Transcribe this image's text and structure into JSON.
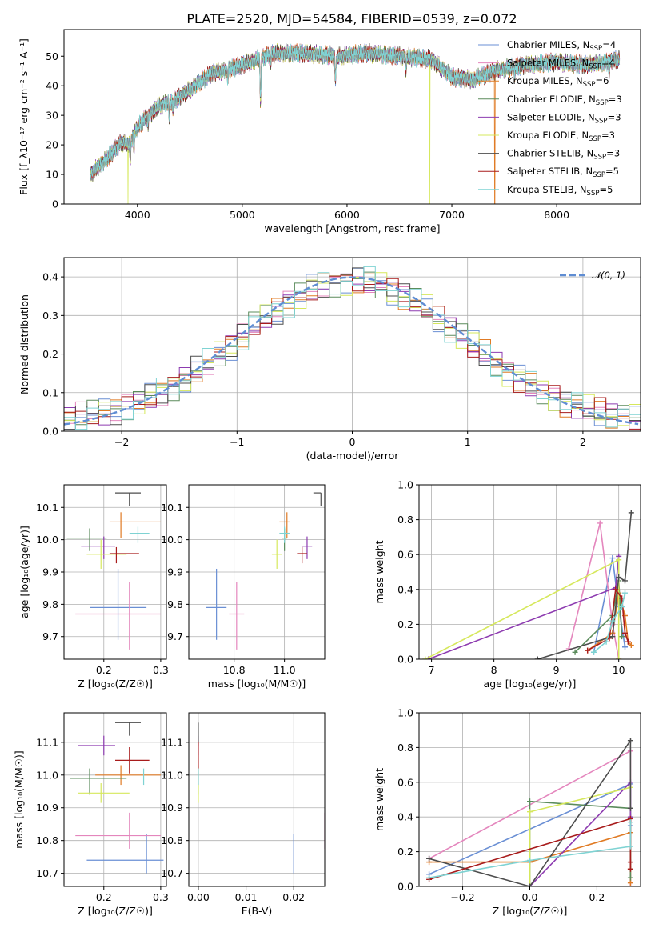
{
  "figure": {
    "title": "PLATE=2520, MJD=54584, FIBERID=0539, z=0.072"
  },
  "series": [
    {
      "name": "Chabrier MILES",
      "nssp": "4",
      "color": "#6a8fd4"
    },
    {
      "name": "Salpeter MILES",
      "nssp": "4",
      "color": "#e486bd"
    },
    {
      "name": "Kroupa MILES",
      "nssp": "6",
      "color": "#e07b25"
    },
    {
      "name": "Chabrier ELODIE",
      "nssp": "3",
      "color": "#5b8c5c"
    },
    {
      "name": "Salpeter ELODIE",
      "nssp": "3",
      "color": "#8d3bb0"
    },
    {
      "name": "Kroupa ELODIE",
      "nssp": "3",
      "color": "#d6e85c"
    },
    {
      "name": "Chabrier STELIB",
      "nssp": "3",
      "color": "#4d4d4d"
    },
    {
      "name": "Salpeter STELIB",
      "nssp": "5",
      "color": "#a81c1c"
    },
    {
      "name": "Kroupa STELIB",
      "nssp": "5",
      "color": "#7fd3d3"
    }
  ],
  "chart_data": [
    {
      "id": "spectrum",
      "type": "line",
      "xlabel": "wavelength [Angstrom, rest frame]",
      "ylabel": "Flux [f_λ10⁻¹⁷ erg cm⁻² s⁻¹ A⁻¹]",
      "xlim": [
        3300,
        8800
      ],
      "ylim": [
        0,
        59
      ],
      "xticks": [
        "4000",
        "5000",
        "6000",
        "7000",
        "8000"
      ],
      "yticks": [
        "0",
        "10",
        "20",
        "30",
        "40",
        "50"
      ],
      "legend_position": "upper-right",
      "continuum": {
        "x": [
          3550,
          3700,
          3850,
          3930,
          3960,
          4050,
          4200,
          4400,
          4700,
          5000,
          5300,
          5600,
          5900,
          6200,
          6500,
          6800,
          7000,
          7200,
          7400,
          7700,
          8000,
          8300,
          8600
        ],
        "y": [
          10,
          15,
          21,
          20,
          24,
          28,
          33,
          36,
          44,
          47,
          51,
          51,
          50,
          51,
          50,
          49,
          43,
          42,
          45,
          47,
          48,
          47,
          49
        ]
      },
      "absorption_lines": [
        {
          "x": 3933,
          "depth": 5
        },
        {
          "x": 3968,
          "depth": 6
        },
        {
          "x": 4102,
          "depth": 3
        },
        {
          "x": 4304,
          "depth": 6
        },
        {
          "x": 4341,
          "depth": 3
        },
        {
          "x": 4861,
          "depth": 4
        },
        {
          "x": 5175,
          "depth": 15
        },
        {
          "x": 5270,
          "depth": 3
        },
        {
          "x": 5890,
          "depth": 9
        },
        {
          "x": 6563,
          "depth": 4
        },
        {
          "x": 7600,
          "depth": 2
        },
        {
          "x": 8500,
          "depth": 4
        }
      ],
      "drops_to_zero": [
        {
          "series": "Kroupa ELODIE",
          "x": 3910
        },
        {
          "series": "Kroupa ELODIE",
          "x": 6790
        },
        {
          "series": "Kroupa MILES",
          "x": 7410
        }
      ]
    },
    {
      "id": "residual_histogram",
      "type": "bar",
      "xlabel": "(data-model)/error",
      "ylabel": "Normed distribution",
      "xlim": [
        -2.5,
        2.5
      ],
      "ylim": [
        0,
        0.45
      ],
      "xticks": [
        "−2",
        "−1",
        "0",
        "1",
        "2"
      ],
      "yticks": [
        "0.0",
        "0.1",
        "0.2",
        "0.3",
        "0.4"
      ],
      "bin_width": 0.1,
      "reference_curve": {
        "name": "𝒩(0, 1)",
        "mean": 0,
        "sigma": 1
      },
      "legend_position": "upper-right"
    },
    {
      "id": "age_vs_Z",
      "type": "scatter",
      "xlabel": "Z [log₁₀(Z/Z☉)]",
      "ylabel": "age  [log₁₀(age/yr)]",
      "xlim": [
        0.13,
        0.31
      ],
      "ylim": [
        9.63,
        10.17
      ],
      "xticks": [
        "0.2",
        "0.3"
      ],
      "yticks": [
        "9.7",
        "9.8",
        "9.9",
        "10.0",
        "10.1"
      ],
      "points": [
        {
          "x": 0.225,
          "xerr": [
            0.05,
            0.05
          ],
          "y": 9.79,
          "yerr": [
            0.1,
            0.12
          ]
        },
        {
          "x": 0.245,
          "xerr": [
            0.095,
            0.055
          ],
          "y": 9.77,
          "yerr": [
            0.11,
            0.1
          ]
        },
        {
          "x": 0.23,
          "xerr": [
            0.02,
            0.07
          ],
          "y": 10.055,
          "yerr": [
            0.05,
            0.03
          ]
        },
        {
          "x": 0.175,
          "xerr": [
            0.04,
            0.03
          ],
          "y": 10.005,
          "yerr": [
            0.04,
            0.03
          ]
        },
        {
          "x": 0.2,
          "xerr": [
            0.04,
            0.02
          ],
          "y": 9.98,
          "yerr": [
            0.04,
            0.03
          ]
        },
        {
          "x": 0.195,
          "xerr": [
            0.025,
            0.045
          ],
          "y": 9.955,
          "yerr": [
            0.045,
            0.045
          ]
        },
        {
          "x": 0.245,
          "xerr": [
            0.025,
            0.02
          ],
          "y": 10.145,
          "yerr": [
            0.04,
            0.0
          ]
        },
        {
          "x": 0.222,
          "xerr": [
            0.012,
            0.04
          ],
          "y": 9.957,
          "yerr": [
            0.03,
            0.02
          ]
        },
        {
          "x": 0.26,
          "xerr": [
            0.015,
            0.02
          ],
          "y": 10.02,
          "yerr": [
            0.03,
            0.02
          ]
        }
      ]
    },
    {
      "id": "age_vs_mass",
      "type": "scatter",
      "xlabel": "mass [log₁₀(M/M☉)]",
      "ylabel": "",
      "xlim": [
        10.62,
        11.16
      ],
      "ylim": [
        9.63,
        10.17
      ],
      "xticks": [
        "10.8",
        "11.0"
      ],
      "yticks": [
        "9.7",
        "9.8",
        "9.9",
        "10.0",
        "10.1"
      ],
      "points": [
        {
          "x": 10.73,
          "xerr": [
            0.04,
            0.04
          ],
          "y": 9.79,
          "yerr": [
            0.1,
            0.12
          ]
        },
        {
          "x": 10.81,
          "xerr": [
            0.03,
            0.03
          ],
          "y": 9.77,
          "yerr": [
            0.11,
            0.1
          ]
        },
        {
          "x": 11.01,
          "xerr": [
            0.03,
            0.01
          ],
          "y": 10.055,
          "yerr": [
            0.05,
            0.03
          ]
        },
        {
          "x": 11.0,
          "xerr": [
            0.01,
            0.01
          ],
          "y": 10.005,
          "yerr": [
            0.04,
            0.03
          ]
        },
        {
          "x": 11.09,
          "xerr": [
            0.02,
            0.02
          ],
          "y": 9.98,
          "yerr": [
            0.04,
            0.03
          ]
        },
        {
          "x": 10.97,
          "xerr": [
            0.02,
            0.02
          ],
          "y": 9.955,
          "yerr": [
            0.045,
            0.045
          ]
        },
        {
          "x": 11.145,
          "xerr": [
            0.03,
            0.0
          ],
          "y": 10.145,
          "yerr": [
            0.04,
            0.0
          ]
        },
        {
          "x": 11.07,
          "xerr": [
            0.02,
            0.02
          ],
          "y": 9.957,
          "yerr": [
            0.03,
            0.02
          ]
        },
        {
          "x": 11.0,
          "xerr": [
            0.02,
            0.02
          ],
          "y": 10.02,
          "yerr": [
            0.03,
            0.02
          ]
        }
      ]
    },
    {
      "id": "weight_vs_age",
      "type": "line",
      "xlabel": "age  [log₁₀(age/yr)]",
      "ylabel": "mass weight",
      "xlim": [
        6.8,
        10.35
      ],
      "ylim": [
        0,
        1
      ],
      "xticks": [
        "7",
        "8",
        "9",
        "10"
      ],
      "yticks": [
        "0.0",
        "0.2",
        "0.4",
        "0.6",
        "0.8",
        "1.0"
      ],
      "lines": [
        {
          "x": [
            9.6,
            9.9,
            10.0,
            10.1
          ],
          "y": [
            0.04,
            0.58,
            0.3,
            0.07
          ]
        },
        {
          "x": [
            9.2,
            9.7,
            9.9,
            10.0
          ],
          "y": [
            0.06,
            0.78,
            0.2,
            0.0
          ]
        },
        {
          "x": [
            9.5,
            9.9,
            10.0,
            10.1,
            10.15,
            10.2
          ],
          "y": [
            0.05,
            0.15,
            0.38,
            0.25,
            0.1,
            0.08
          ]
        },
        {
          "x": [
            9.3,
            9.9,
            10.0,
            10.05
          ],
          "y": [
            0.04,
            0.25,
            0.45,
            0.13
          ]
        },
        {
          "x": [
            6.95,
            9.95,
            10.0
          ],
          "y": [
            0.0,
            0.41,
            0.59
          ]
        },
        {
          "x": [
            6.9,
            10.0,
            10.0
          ],
          "y": [
            0.0,
            0.57,
            0.0
          ]
        },
        {
          "x": [
            8.7,
            9.9,
            10.0,
            10.1,
            10.2
          ],
          "y": [
            0.0,
            0.13,
            0.47,
            0.45,
            0.84
          ]
        },
        {
          "x": [
            9.5,
            9.85,
            9.95,
            10.05,
            10.1,
            10.15
          ],
          "y": [
            0.05,
            0.12,
            0.4,
            0.35,
            0.15,
            0.1
          ]
        },
        {
          "x": [
            9.6,
            9.8,
            9.9,
            10.05,
            10.1
          ],
          "y": [
            0.04,
            0.1,
            0.22,
            0.3,
            0.38
          ]
        }
      ]
    },
    {
      "id": "mass_vs_Z",
      "type": "scatter",
      "xlabel": "Z [log₁₀(Z/Z☉)]",
      "ylabel": "mass [log₁₀(M/M☉)]",
      "xlim": [
        0.13,
        0.31
      ],
      "ylim": [
        10.66,
        11.19
      ],
      "xticks": [
        "0.2",
        "0.3"
      ],
      "yticks": [
        "10.7",
        "10.8",
        "10.9",
        "11.0",
        "11.1"
      ],
      "points": [
        {
          "x": 0.275,
          "xerr": [
            0.105,
            0.03
          ],
          "y": 10.74,
          "yerr": [
            0.04,
            0.08
          ]
        },
        {
          "x": 0.245,
          "xerr": [
            0.095,
            0.055
          ],
          "y": 10.815,
          "yerr": [
            0.04,
            0.07
          ]
        },
        {
          "x": 0.23,
          "xerr": [
            0.045,
            0.07
          ],
          "y": 11.0,
          "yerr": [
            0.03,
            0.03
          ]
        },
        {
          "x": 0.175,
          "xerr": [
            0.035,
            0.065
          ],
          "y": 10.99,
          "yerr": [
            0.05,
            0.03
          ]
        },
        {
          "x": 0.2,
          "xerr": [
            0.045,
            0.02
          ],
          "y": 11.09,
          "yerr": [
            0.03,
            0.03
          ]
        },
        {
          "x": 0.195,
          "xerr": [
            0.04,
            0.05
          ],
          "y": 10.945,
          "yerr": [
            0.03,
            0.03
          ]
        },
        {
          "x": 0.245,
          "xerr": [
            0.025,
            0.02
          ],
          "y": 11.16,
          "yerr": [
            0.04,
            0.0
          ]
        },
        {
          "x": 0.245,
          "xerr": [
            0.025,
            0.035
          ],
          "y": 11.045,
          "yerr": [
            0.04,
            0.04
          ]
        },
        {
          "x": 0.27,
          "xerr": [
            0.0,
            0.0
          ],
          "y": 11.0,
          "yerr": [
            0.03,
            0.02
          ]
        }
      ]
    },
    {
      "id": "mass_vs_EBV",
      "type": "scatter",
      "xlabel": "E(B-V)",
      "ylabel": "",
      "xlim": [
        -0.002,
        0.0265
      ],
      "ylim": [
        10.66,
        11.19
      ],
      "xticks": [
        "0.00",
        "0.01",
        "0.02"
      ],
      "yticks": [
        "10.7",
        "10.8",
        "10.9",
        "11.0",
        "11.1"
      ],
      "points": [
        {
          "x": 0.02,
          "xerr": [
            0.0,
            0.0
          ],
          "y": 10.74,
          "yerr": [
            0.04,
            0.08
          ]
        },
        {
          "x": 0.0265,
          "xerr": [
            0.0,
            0.0
          ],
          "y": 10.815,
          "yerr": [
            0.04,
            0.07
          ]
        },
        {
          "x": 0.0,
          "xerr": [
            0.0,
            0.0
          ],
          "y": 11.0,
          "yerr": [
            0.03,
            0.03
          ]
        },
        {
          "x": 0.0,
          "xerr": [
            0.0,
            0.0
          ],
          "y": 10.99,
          "yerr": [
            0.05,
            0.03
          ]
        },
        {
          "x": 0.0,
          "xerr": [
            0.0,
            0.0
          ],
          "y": 11.09,
          "yerr": [
            0.03,
            0.03
          ]
        },
        {
          "x": 0.0,
          "xerr": [
            0.0,
            0.0
          ],
          "y": 10.945,
          "yerr": [
            0.03,
            0.03
          ]
        },
        {
          "x": 0.0,
          "xerr": [
            0.0,
            0.0
          ],
          "y": 11.13,
          "yerr": [
            0.04,
            0.03
          ]
        },
        {
          "x": 0.0,
          "xerr": [
            0.0,
            0.0
          ],
          "y": 11.06,
          "yerr": [
            0.04,
            0.04
          ]
        },
        {
          "x": 0.0,
          "xerr": [
            0.0,
            0.0
          ],
          "y": 11.0,
          "yerr": [
            0.03,
            0.02
          ]
        }
      ]
    },
    {
      "id": "weight_vs_Z",
      "type": "line",
      "xlabel": "Z [log₁₀(Z/Z☉)]",
      "ylabel": "mass weight",
      "xlim": [
        -0.33,
        0.33
      ],
      "ylim": [
        0,
        1
      ],
      "xticks": [
        "−0.2",
        "0.0",
        "0.2"
      ],
      "yticks": [
        "0.0",
        "0.2",
        "0.4",
        "0.6",
        "0.8",
        "1.0"
      ],
      "lines": [
        {
          "x": [
            -0.3,
            0.3,
            0.3
          ],
          "y": [
            0.07,
            0.59,
            0.35
          ]
        },
        {
          "x": [
            -0.3,
            0.3,
            0.3
          ],
          "y": [
            0.16,
            0.78,
            0.0
          ]
        },
        {
          "x": [
            -0.3,
            0.0,
            0.3,
            0.3,
            0.3
          ],
          "y": [
            0.14,
            0.14,
            0.31,
            0.1,
            0.02
          ]
        },
        {
          "x": [
            0.0,
            0.0,
            0.3,
            0.3
          ],
          "y": [
            0.0,
            0.49,
            0.45,
            0.05
          ]
        },
        {
          "x": [
            0.0,
            0.3,
            0.3
          ],
          "y": [
            0.0,
            0.6,
            0.4
          ]
        },
        {
          "x": [
            0.0,
            0.0,
            0.3
          ],
          "y": [
            0.0,
            0.43,
            0.57
          ]
        },
        {
          "x": [
            -0.3,
            0.0,
            0.3,
            0.3
          ],
          "y": [
            0.16,
            0.0,
            0.84,
            0.45
          ]
        },
        {
          "x": [
            -0.3,
            0.3,
            0.3,
            0.3
          ],
          "y": [
            0.04,
            0.39,
            0.14,
            0.1
          ]
        },
        {
          "x": [
            -0.3,
            0.0,
            0.3,
            0.3
          ],
          "y": [
            0.05,
            0.15,
            0.23,
            0.37
          ]
        }
      ]
    }
  ]
}
